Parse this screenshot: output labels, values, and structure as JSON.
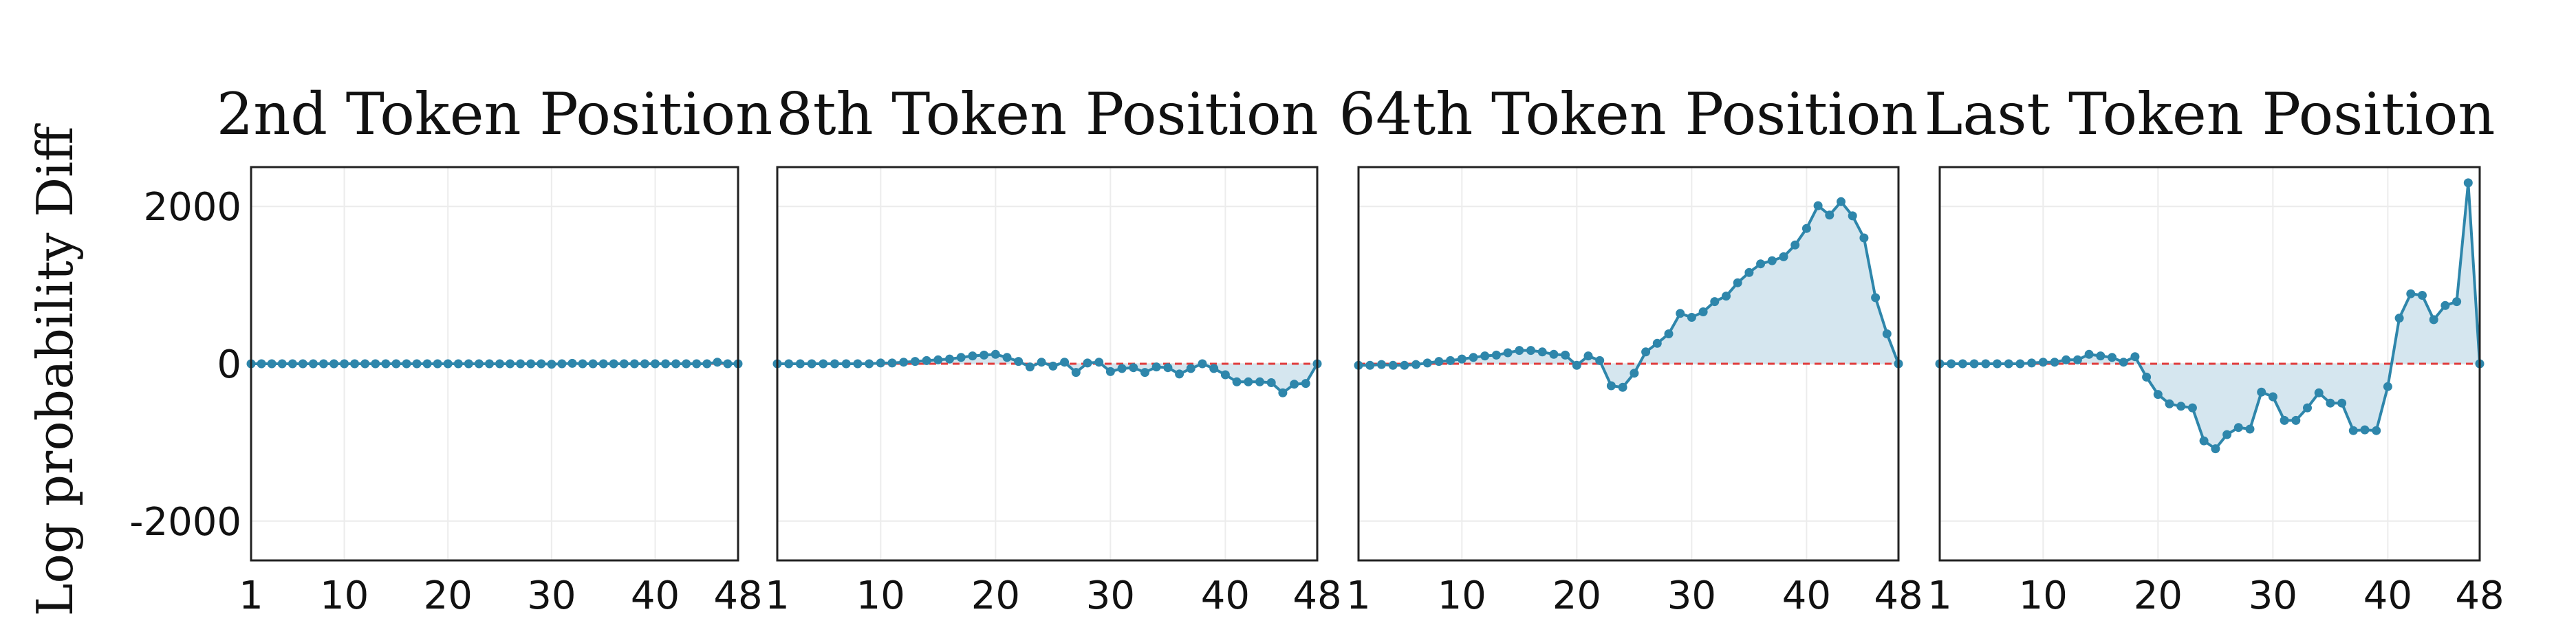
{
  "ylabel": "Log probability Diff",
  "colors": {
    "line": "#2e86ab",
    "fill": "#d5e6ef",
    "zero_line": "#e03b3b",
    "grid": "#ececec",
    "frame": "#222222"
  },
  "chart_data": [
    {
      "type": "line",
      "title": "2nd Token Position",
      "x": [
        1,
        2,
        3,
        4,
        5,
        6,
        7,
        8,
        9,
        10,
        11,
        12,
        13,
        14,
        15,
        16,
        17,
        18,
        19,
        20,
        21,
        22,
        23,
        24,
        25,
        26,
        27,
        28,
        29,
        30,
        31,
        32,
        33,
        34,
        35,
        36,
        37,
        38,
        39,
        40,
        41,
        42,
        43,
        44,
        45,
        46,
        47,
        48
      ],
      "values": [
        0,
        0,
        0,
        0,
        0,
        0,
        0,
        0,
        0,
        0,
        0,
        0,
        0,
        0,
        0,
        0,
        0,
        0,
        0,
        0,
        0,
        0,
        0,
        0,
        0,
        0,
        0,
        0,
        0,
        -5,
        0,
        5,
        0,
        0,
        0,
        0,
        0,
        0,
        0,
        0,
        0,
        0,
        0,
        0,
        0,
        20,
        0,
        0
      ],
      "xticks": [
        1,
        10,
        20,
        30,
        40,
        48
      ],
      "yticks": [
        2000,
        0,
        -2000
      ],
      "ylim": [
        -2500,
        2500
      ],
      "xlim": [
        1,
        48
      ]
    },
    {
      "type": "line",
      "title": "8th Token Position",
      "x": [
        1,
        2,
        3,
        4,
        5,
        6,
        7,
        8,
        9,
        10,
        11,
        12,
        13,
        14,
        15,
        16,
        17,
        18,
        19,
        20,
        21,
        22,
        23,
        24,
        25,
        26,
        27,
        28,
        29,
        30,
        31,
        32,
        33,
        34,
        35,
        36,
        37,
        38,
        39,
        40,
        41,
        42,
        43,
        44,
        45,
        46,
        47,
        48
      ],
      "values": [
        0,
        0,
        0,
        0,
        0,
        0,
        0,
        0,
        0,
        10,
        10,
        20,
        30,
        40,
        50,
        60,
        80,
        100,
        110,
        120,
        80,
        30,
        -40,
        20,
        -30,
        20,
        -110,
        10,
        20,
        -100,
        -60,
        -50,
        -110,
        -40,
        -50,
        -130,
        -60,
        0,
        -60,
        -140,
        -230,
        -230,
        -230,
        -240,
        -370,
        -260,
        -250,
        0
      ],
      "xticks": [
        1,
        10,
        20,
        30,
        40,
        48
      ],
      "ylim": [
        -2500,
        2500
      ],
      "xlim": [
        1,
        48
      ]
    },
    {
      "type": "area",
      "title": "64th Token Position",
      "x": [
        1,
        2,
        3,
        4,
        5,
        6,
        7,
        8,
        9,
        10,
        11,
        12,
        13,
        14,
        15,
        16,
        17,
        18,
        19,
        20,
        21,
        22,
        23,
        24,
        25,
        26,
        27,
        28,
        29,
        30,
        31,
        32,
        33,
        34,
        35,
        36,
        37,
        38,
        39,
        40,
        41,
        42,
        43,
        44,
        45,
        46,
        47,
        48
      ],
      "values": [
        -20,
        -20,
        -10,
        -20,
        -20,
        -10,
        10,
        30,
        40,
        60,
        80,
        100,
        110,
        140,
        170,
        170,
        150,
        120,
        110,
        -20,
        100,
        40,
        -280,
        -300,
        -120,
        150,
        260,
        380,
        640,
        590,
        660,
        790,
        860,
        1030,
        1160,
        1270,
        1310,
        1360,
        1510,
        1720,
        2010,
        1890,
        2060,
        1880,
        1600,
        840,
        380,
        0
      ],
      "xticks": [
        1,
        10,
        20,
        30,
        40,
        48
      ],
      "ylim": [
        -2500,
        2500
      ],
      "xlim": [
        1,
        48
      ]
    },
    {
      "type": "area",
      "title": "Last Token Position",
      "x": [
        1,
        2,
        3,
        4,
        5,
        6,
        7,
        8,
        9,
        10,
        11,
        12,
        13,
        14,
        15,
        16,
        17,
        18,
        19,
        20,
        21,
        22,
        23,
        24,
        25,
        26,
        27,
        28,
        29,
        30,
        31,
        32,
        33,
        34,
        35,
        36,
        37,
        38,
        39,
        40,
        41,
        42,
        43,
        44,
        45,
        46,
        47,
        48
      ],
      "values": [
        0,
        0,
        0,
        0,
        0,
        0,
        0,
        0,
        10,
        20,
        20,
        50,
        50,
        120,
        100,
        80,
        20,
        90,
        -170,
        -390,
        -510,
        -540,
        -560,
        -980,
        -1080,
        -900,
        -810,
        -830,
        -360,
        -420,
        -720,
        -720,
        -560,
        -370,
        -500,
        -500,
        -850,
        -840,
        -850,
        -290,
        580,
        890,
        870,
        560,
        740,
        790,
        2300,
        0
      ],
      "xticks": [
        1,
        10,
        20,
        30,
        40,
        48
      ],
      "ylim": [
        -2500,
        2500
      ],
      "xlim": [
        1,
        48
      ]
    }
  ]
}
